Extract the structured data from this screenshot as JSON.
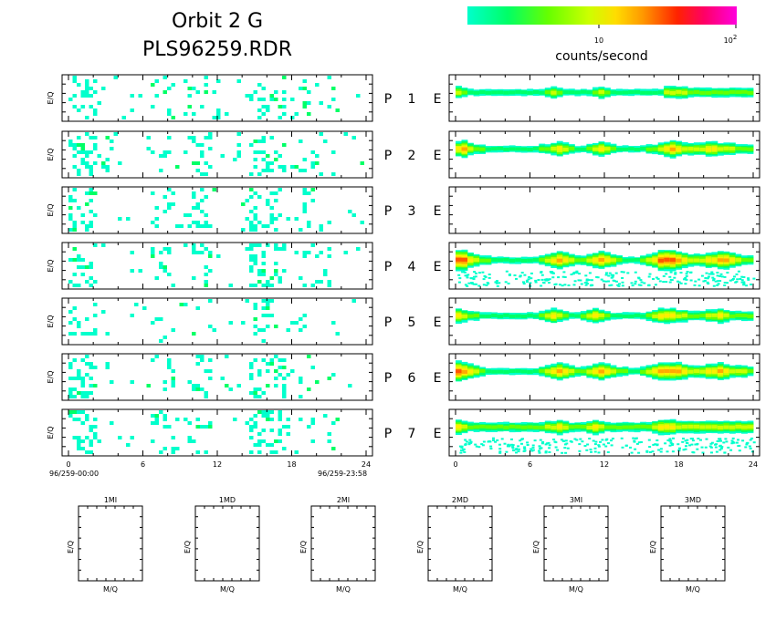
{
  "header": {
    "title_line1": "Orbit 2 G",
    "title_line2": "PLS96259.RDR"
  },
  "colorbar": {
    "label": "counts/second",
    "tick_10": "10",
    "tick_100_base": "10",
    "tick_100_exp": "2",
    "colors": [
      "#00ffcc",
      "#00ff66",
      "#66ff00",
      "#ccff00",
      "#ffee00",
      "#ffaa00",
      "#ff5500",
      "#ff0033",
      "#ff0099",
      "#ff00cc"
    ]
  },
  "axis": {
    "ylabel": "E/Q",
    "xlabel": "M/Q",
    "start_label": "96/259-00:00",
    "end_label": "96/259-23:58",
    "hour_ticks": [
      "0",
      "6",
      "12",
      "18",
      "24"
    ]
  },
  "panels": [
    {
      "p": "P",
      "n": "1",
      "e": "E"
    },
    {
      "p": "P",
      "n": "2",
      "e": "E"
    },
    {
      "p": "P",
      "n": "3",
      "e": "E"
    },
    {
      "p": "P",
      "n": "4",
      "e": "E"
    },
    {
      "p": "P",
      "n": "5",
      "e": "E"
    },
    {
      "p": "P",
      "n": "6",
      "e": "E"
    },
    {
      "p": "P",
      "n": "7",
      "e": "E"
    }
  ],
  "small_panels": [
    "1MI",
    "1MD",
    "2MI",
    "2MD",
    "3MI",
    "3MD"
  ],
  "chart_data": {
    "type": "heatmap",
    "x_range_hours": [
      0,
      24
    ],
    "left_bands": [
      [
        1,
        0,
        1,
        2,
        1,
        1,
        1,
        1,
        1,
        1,
        1,
        1,
        1,
        2,
        1,
        1,
        1,
        1,
        1,
        1,
        1,
        2,
        2,
        1,
        1,
        1,
        1,
        1,
        1,
        1,
        1,
        1,
        1,
        1,
        1,
        1,
        1,
        2,
        1,
        1,
        2,
        2,
        1,
        1,
        1,
        1,
        1,
        1,
        1,
        1
      ],
      [
        1,
        1,
        2,
        1,
        1,
        0,
        1,
        1,
        1,
        1,
        1,
        1,
        1,
        1,
        1,
        1,
        1,
        1,
        1,
        1,
        1,
        1,
        1,
        1,
        1,
        1,
        1,
        1,
        1,
        1,
        1,
        2,
        1,
        1,
        1,
        1,
        2,
        1,
        1,
        1,
        1,
        2,
        1,
        1,
        1,
        1,
        1,
        1,
        1,
        1
      ],
      [
        1,
        1,
        2,
        2,
        1,
        1,
        1,
        1,
        1,
        1,
        1,
        1,
        1,
        1,
        1,
        1,
        1,
        1,
        1,
        1,
        1,
        1,
        1,
        1,
        1,
        1,
        1,
        1,
        1,
        1,
        1,
        1,
        1,
        1,
        1,
        1,
        1,
        1,
        1,
        1,
        1,
        1,
        1,
        1,
        1,
        1,
        1,
        1,
        1,
        1
      ]
    ],
    "right_rows": [
      {
        "row": "1",
        "profile": [
          3,
          2,
          1,
          1,
          1,
          1,
          1,
          1,
          1,
          1,
          1,
          1,
          1,
          1,
          1,
          2,
          3,
          2,
          1,
          1,
          1,
          1,
          1,
          2,
          3,
          2,
          1,
          1,
          1,
          1,
          1,
          1,
          1,
          1,
          1,
          3,
          3,
          3,
          3,
          2,
          2,
          2,
          2,
          2,
          2,
          2,
          2,
          2,
          2,
          2
        ]
      },
      {
        "row": "2",
        "profile": [
          4,
          5,
          3,
          2,
          2,
          1,
          1,
          1,
          1,
          1,
          1,
          1,
          1,
          1,
          2,
          2,
          3,
          4,
          3,
          2,
          1,
          1,
          2,
          3,
          4,
          3,
          2,
          1,
          1,
          1,
          1,
          1,
          2,
          2,
          3,
          4,
          5,
          4,
          3,
          3,
          3,
          3,
          4,
          4,
          3,
          3,
          3,
          2,
          2,
          2
        ]
      },
      {
        "row": "3",
        "profile": []
      },
      {
        "row": "4",
        "profile": [
          6,
          6,
          4,
          3,
          2,
          2,
          1,
          1,
          1,
          1,
          1,
          1,
          1,
          1,
          2,
          3,
          4,
          5,
          4,
          3,
          2,
          2,
          3,
          4,
          5,
          4,
          3,
          2,
          1,
          1,
          1,
          2,
          3,
          4,
          6,
          6,
          6,
          5,
          4,
          3,
          3,
          3,
          4,
          4,
          5,
          5,
          4,
          3,
          2,
          2
        ]
      },
      {
        "row": "5",
        "profile": [
          4,
          3,
          2,
          2,
          1,
          1,
          1,
          1,
          1,
          1,
          1,
          1,
          1,
          1,
          2,
          3,
          4,
          3,
          2,
          1,
          1,
          2,
          3,
          4,
          3,
          2,
          1,
          1,
          1,
          1,
          1,
          1,
          2,
          3,
          4,
          4,
          4,
          3,
          3,
          2,
          2,
          2,
          3,
          3,
          4,
          3,
          2,
          2,
          2,
          2
        ]
      },
      {
        "row": "6",
        "profile": [
          6,
          5,
          4,
          3,
          2,
          1,
          1,
          1,
          1,
          1,
          1,
          1,
          1,
          1,
          2,
          3,
          4,
          5,
          4,
          3,
          2,
          2,
          3,
          4,
          5,
          4,
          3,
          2,
          2,
          1,
          1,
          2,
          3,
          4,
          5,
          5,
          5,
          5,
          4,
          3,
          3,
          3,
          4,
          4,
          5,
          4,
          3,
          3,
          3,
          2
        ]
      },
      {
        "row": "7",
        "profile": [
          4,
          3,
          2,
          2,
          2,
          2,
          2,
          2,
          2,
          2,
          2,
          2,
          2,
          2,
          2,
          3,
          3,
          4,
          3,
          2,
          2,
          2,
          3,
          4,
          3,
          2,
          2,
          2,
          2,
          2,
          2,
          2,
          2,
          3,
          4,
          4,
          4,
          3,
          3,
          3,
          3,
          3,
          3,
          3,
          3,
          3,
          3,
          3,
          3,
          3
        ]
      }
    ]
  }
}
